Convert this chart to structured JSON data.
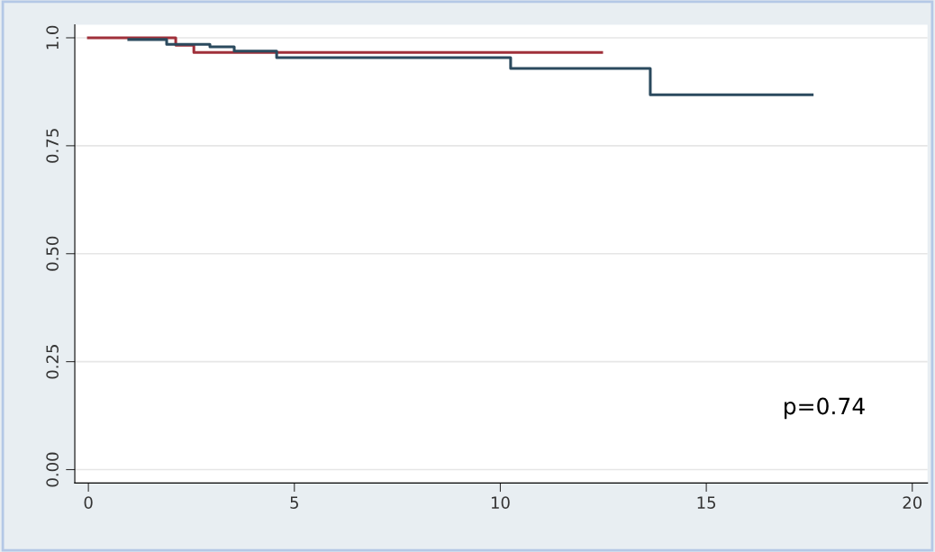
{
  "chart_data": {
    "type": "step",
    "xlim": [
      -0.33,
      20.37
    ],
    "ylim": [
      -0.031,
      1.03
    ],
    "xticks": [
      0,
      5,
      10,
      15,
      20
    ],
    "yticks": [
      {
        "value": 0,
        "label": "0.00"
      },
      {
        "value": 0.25,
        "label": "0.25"
      },
      {
        "value": 0.5,
        "label": "0.50"
      },
      {
        "value": 0.75,
        "label": "0.75"
      },
      {
        "value": 1,
        "label": "1.0"
      }
    ],
    "grid": "y",
    "legend": false,
    "marker": "none",
    "line_style": "solid",
    "series": [
      {
        "color": "#a0303a",
        "x": [
          0,
          2.12,
          2.56,
          12.46
        ],
        "values": [
          1.0,
          0.983,
          0.966,
          0.966
        ]
      },
      {
        "color": "#2b4a5e",
        "x": [
          0.98,
          1.9,
          2.95,
          3.54,
          4.57,
          10.25,
          13.64,
          17.57
        ],
        "values": [
          0.996,
          0.985,
          0.979,
          0.969,
          0.954,
          0.929,
          0.868,
          0.868
        ]
      }
    ],
    "annotations": [
      "p=0.74"
    ]
  }
}
